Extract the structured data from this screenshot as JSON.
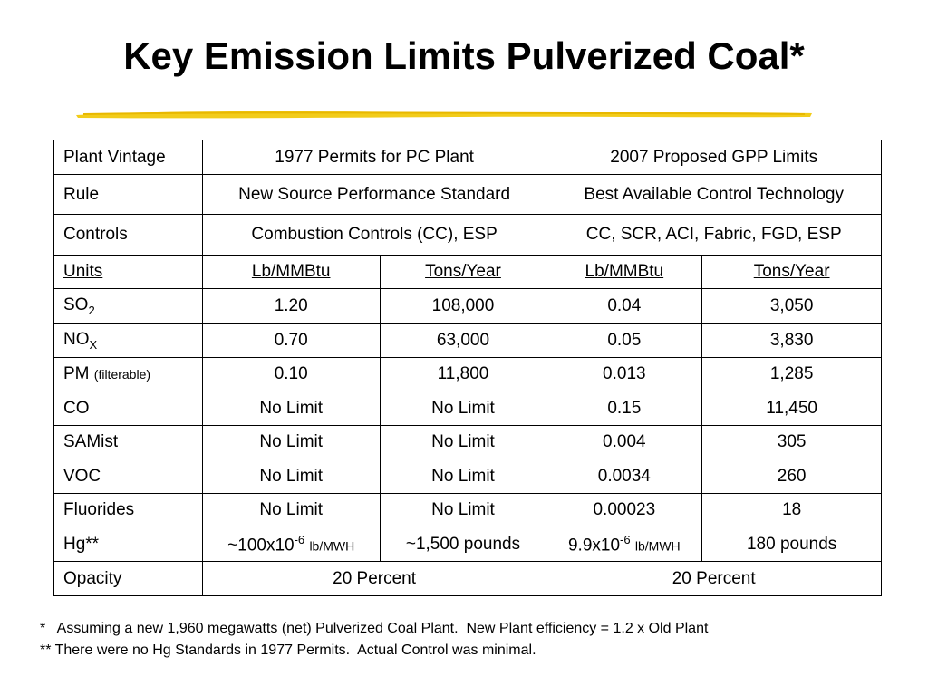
{
  "slide": {
    "title": "Key Emission Limits Pulverized Coal*",
    "accent_color": "#f0c800"
  },
  "table": {
    "header": {
      "label": "Plant Vintage",
      "col1": "1977 Permits for PC Plant",
      "col2": "2007 Proposed GPP Limits"
    },
    "rule": {
      "label": "Rule",
      "col1": "New Source Performance Standard",
      "col2": "Best Available Control Technology"
    },
    "controls": {
      "label": "Controls",
      "col1": "Combustion Controls (CC), ESP",
      "col2": "CC, SCR, ACI, Fabric, FGD, ESP"
    },
    "units": {
      "label": "Units",
      "u1": "Lb/MMBtu",
      "u2": "Tons/Year",
      "u3": "Lb/MMBtu",
      "u4": "Tons/Year"
    },
    "rows": [
      {
        "label": "SO",
        "sub": "2",
        "v1": "1.20",
        "v2": "108,000",
        "v3": "0.04",
        "v4": "3,050"
      },
      {
        "label": "NO",
        "sub": "X",
        "v1": "0.70",
        "v2": "63,000",
        "v3": "0.05",
        "v4": "3,830"
      },
      {
        "label": "PM",
        "note": "(filterable)",
        "v1": "0.10",
        "v2": "11,800",
        "v3": "0.013",
        "v4": "1,285"
      },
      {
        "label": "CO",
        "v1": "No Limit",
        "v2": "No Limit",
        "v3": "0.15",
        "v4": "11,450"
      },
      {
        "label": "SAMist",
        "v1": "No Limit",
        "v2": "No Limit",
        "v3": "0.004",
        "v4": "305"
      },
      {
        "label": "VOC",
        "v1": "No Limit",
        "v2": "No Limit",
        "v3": "0.0034",
        "v4": "260"
      },
      {
        "label": "Fluorides",
        "v1": "No Limit",
        "v2": "No Limit",
        "v3": "0.00023",
        "v4": "18"
      }
    ],
    "hg": {
      "label": "Hg**",
      "v1_base": "~100x10",
      "v1_exp": "-6",
      "v1_unit": "lb/MWH",
      "v2": "~1,500 pounds",
      "v3_base": "9.9x10",
      "v3_exp": "-6",
      "v3_unit": "lb/MWH",
      "v4": "180 pounds"
    },
    "opacity": {
      "label": "Opacity",
      "col1": "20 Percent",
      "col2": "20 Percent"
    }
  },
  "footnotes": {
    "note1": "*   Assuming a new 1,960 megawatts (net) Pulverized Coal Plant.  New Plant efficiency = 1.2 x Old Plant",
    "note2": "** There were no Hg Standards in 1977 Permits.  Actual Control was minimal."
  }
}
